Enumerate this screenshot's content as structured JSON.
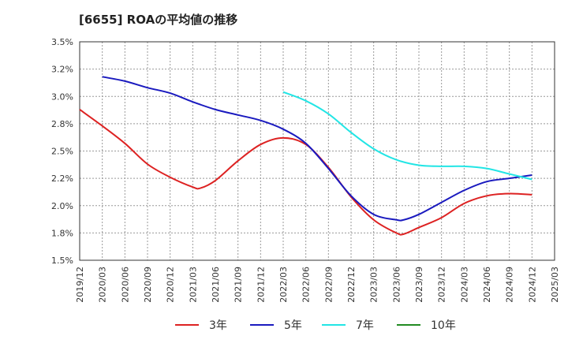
{
  "chart_data": {
    "type": "line",
    "title": "[6655]  ROAの平均値の推移",
    "xlabel": "",
    "ylabel": "",
    "x_ticks": [
      "2019/12",
      "2020/03",
      "2020/06",
      "2020/09",
      "2020/12",
      "2021/03",
      "2021/06",
      "2021/09",
      "2021/12",
      "2022/03",
      "2022/06",
      "2022/09",
      "2022/12",
      "2023/03",
      "2023/06",
      "2023/09",
      "2023/12",
      "2024/03",
      "2024/06",
      "2024/09",
      "2024/12",
      "2025/03"
    ],
    "y_ticks": [
      "1.5%",
      "1.8%",
      "2.0%",
      "2.2%",
      "2.5%",
      "2.8%",
      "3.0%",
      "3.2%",
      "3.5%"
    ],
    "ylim": [
      1.5,
      3.5
    ],
    "grid": true,
    "legend_position": "bottom",
    "series": [
      {
        "name": "3年",
        "color": "#dd2222",
        "x": [
          "2019/12",
          "2020/03",
          "2020/06",
          "2020/09",
          "2020/12",
          "2021/03",
          "2021/04",
          "2021/06",
          "2021/09",
          "2021/12",
          "2022/03",
          "2022/06",
          "2022/09",
          "2022/12",
          "2023/03",
          "2023/06",
          "2023/07",
          "2023/09",
          "2023/12",
          "2024/03",
          "2024/06",
          "2024/09",
          "2024/12"
        ],
        "values": [
          2.88,
          2.73,
          2.57,
          2.38,
          2.26,
          2.17,
          2.16,
          2.23,
          2.41,
          2.56,
          2.62,
          2.56,
          2.35,
          2.08,
          1.87,
          1.75,
          1.74,
          1.8,
          1.89,
          2.02,
          2.09,
          2.11,
          2.1
        ]
      },
      {
        "name": "5年",
        "color": "#1a1abf",
        "x": [
          "2020/03",
          "2020/06",
          "2020/09",
          "2020/12",
          "2021/03",
          "2021/06",
          "2021/09",
          "2021/12",
          "2022/03",
          "2022/06",
          "2022/09",
          "2022/12",
          "2023/03",
          "2023/06",
          "2023/07",
          "2023/09",
          "2023/12",
          "2024/03",
          "2024/06",
          "2024/09",
          "2024/12"
        ],
        "values": [
          3.18,
          3.14,
          3.08,
          3.03,
          2.95,
          2.88,
          2.83,
          2.78,
          2.7,
          2.57,
          2.34,
          2.09,
          1.92,
          1.87,
          1.87,
          1.92,
          2.03,
          2.14,
          2.22,
          2.25,
          2.28
        ]
      },
      {
        "name": "7年",
        "color": "#22e5e5",
        "x": [
          "2022/03",
          "2022/06",
          "2022/09",
          "2022/12",
          "2023/03",
          "2023/06",
          "2023/09",
          "2023/12",
          "2024/03",
          "2024/06",
          "2024/09",
          "2024/12"
        ],
        "values": [
          3.04,
          2.96,
          2.84,
          2.67,
          2.52,
          2.42,
          2.37,
          2.36,
          2.36,
          2.34,
          2.29,
          2.24
        ]
      },
      {
        "name": "10年",
        "color": "#228b22",
        "x": [],
        "values": []
      }
    ]
  }
}
